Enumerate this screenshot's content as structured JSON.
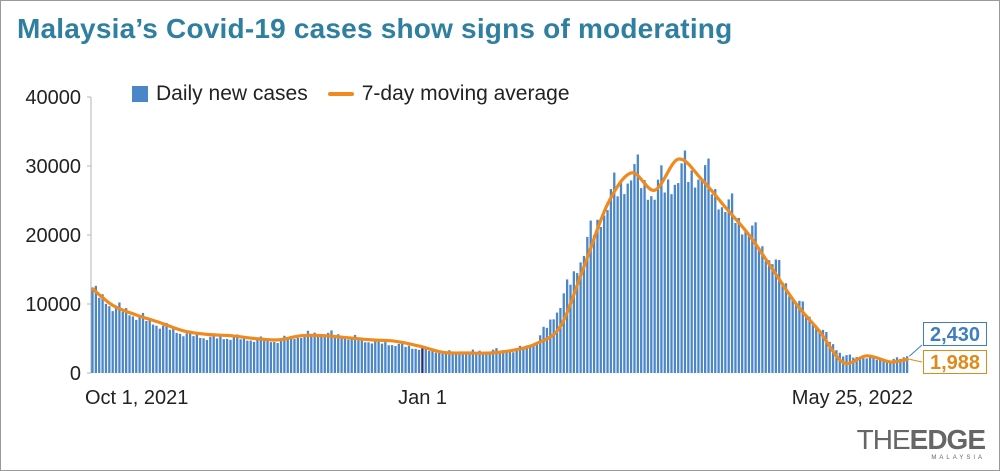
{
  "title": "Malaysia’s Covid-19 cases show signs of moderating",
  "legend": {
    "bars_label": "Daily new cases",
    "line_label": "7-day moving average"
  },
  "colors": {
    "title": "#2f7fa0",
    "bars": "#4a86c8",
    "line": "#f08a1c",
    "last_bar_label": "#3f7fbf",
    "last_avg_label": "#e08a1a",
    "highlight_bar": "#2a2a6e"
  },
  "last_labels": {
    "daily": "2,430",
    "average": "1,988"
  },
  "brand": {
    "main_light": "THE",
    "main_strong": "EDGE",
    "sub": "MALAYSIA"
  },
  "chart_data": {
    "type": "bar",
    "title": "Malaysia’s Covid-19 cases show signs of moderating",
    "xlabel": "",
    "ylabel": "",
    "ylim": [
      0,
      40000
    ],
    "yticks": [
      0,
      10000,
      20000,
      30000,
      40000
    ],
    "ytick_labels": [
      "0",
      "10000",
      "20000",
      "30000",
      "40000"
    ],
    "x_start": "2021-09-25",
    "x_end": "2022-05-25",
    "xtick_labels": [
      {
        "date": "2021-10-01",
        "label": "Oct 1, 2021",
        "align": "start"
      },
      {
        "date": "2022-01-01",
        "label": "Jan 1",
        "align": "middle"
      },
      {
        "date": "2022-05-25",
        "label": "May 25, 2022",
        "align": "end"
      }
    ],
    "grid": false,
    "legend_position": "top-left",
    "highlight_date": "2022-01-01",
    "series": [
      {
        "name": "Daily new cases",
        "type": "bar",
        "points": [
          [
            "2021-09-25",
            12000
          ],
          [
            "2021-10-01",
            9800
          ],
          [
            "2021-10-08",
            8400
          ],
          [
            "2021-10-15",
            7000
          ],
          [
            "2021-10-22",
            5800
          ],
          [
            "2021-10-29",
            5200
          ],
          [
            "2021-11-05",
            5200
          ],
          [
            "2021-11-12",
            4900
          ],
          [
            "2021-11-19",
            4700
          ],
          [
            "2021-11-26",
            5500
          ],
          [
            "2021-12-03",
            5800
          ],
          [
            "2021-12-10",
            5200
          ],
          [
            "2021-12-17",
            4600
          ],
          [
            "2021-12-24",
            4200
          ],
          [
            "2021-12-31",
            3600
          ],
          [
            "2022-01-07",
            3000
          ],
          [
            "2022-01-14",
            3000
          ],
          [
            "2022-01-21",
            3300
          ],
          [
            "2022-01-28",
            3200
          ],
          [
            "2022-02-04",
            4500
          ],
          [
            "2022-02-11",
            10000
          ],
          [
            "2022-02-18",
            18000
          ],
          [
            "2022-02-25",
            25000
          ],
          [
            "2022-03-04",
            29500
          ],
          [
            "2022-03-11",
            26500
          ],
          [
            "2022-03-18",
            29000
          ],
          [
            "2022-03-25",
            29500
          ],
          [
            "2022-04-01",
            24500
          ],
          [
            "2022-04-08",
            21000
          ],
          [
            "2022-04-15",
            16500
          ],
          [
            "2022-04-22",
            10500
          ],
          [
            "2022-04-29",
            6500
          ],
          [
            "2022-05-06",
            2500
          ],
          [
            "2022-05-13",
            2200
          ],
          [
            "2022-05-20",
            1800
          ],
          [
            "2022-05-25",
            2430
          ]
        ]
      },
      {
        "name": "7-day moving average",
        "type": "line",
        "points": [
          [
            "2021-09-25",
            12200
          ],
          [
            "2021-10-01",
            9800
          ],
          [
            "2021-10-08",
            8400
          ],
          [
            "2021-10-15",
            7300
          ],
          [
            "2021-10-22",
            6100
          ],
          [
            "2021-10-29",
            5600
          ],
          [
            "2021-11-05",
            5400
          ],
          [
            "2021-11-12",
            5000
          ],
          [
            "2021-11-19",
            4800
          ],
          [
            "2021-11-26",
            5400
          ],
          [
            "2021-12-03",
            5400
          ],
          [
            "2021-12-10",
            5100
          ],
          [
            "2021-12-17",
            4800
          ],
          [
            "2021-12-24",
            4600
          ],
          [
            "2021-12-31",
            3900
          ],
          [
            "2022-01-07",
            3000
          ],
          [
            "2022-01-14",
            2900
          ],
          [
            "2022-01-21",
            2900
          ],
          [
            "2022-01-28",
            3300
          ],
          [
            "2022-02-04",
            4300
          ],
          [
            "2022-02-11",
            6800
          ],
          [
            "2022-02-18",
            15500
          ],
          [
            "2022-02-25",
            24500
          ],
          [
            "2022-03-04",
            29000
          ],
          [
            "2022-03-11",
            26500
          ],
          [
            "2022-03-18",
            31000
          ],
          [
            "2022-03-25",
            28000
          ],
          [
            "2022-04-01",
            24000
          ],
          [
            "2022-04-08",
            20000
          ],
          [
            "2022-04-15",
            15000
          ],
          [
            "2022-04-22",
            10000
          ],
          [
            "2022-04-29",
            6000
          ],
          [
            "2022-05-06",
            1500
          ],
          [
            "2022-05-13",
            2500
          ],
          [
            "2022-05-20",
            1600
          ],
          [
            "2022-05-25",
            1988
          ]
        ]
      }
    ]
  }
}
